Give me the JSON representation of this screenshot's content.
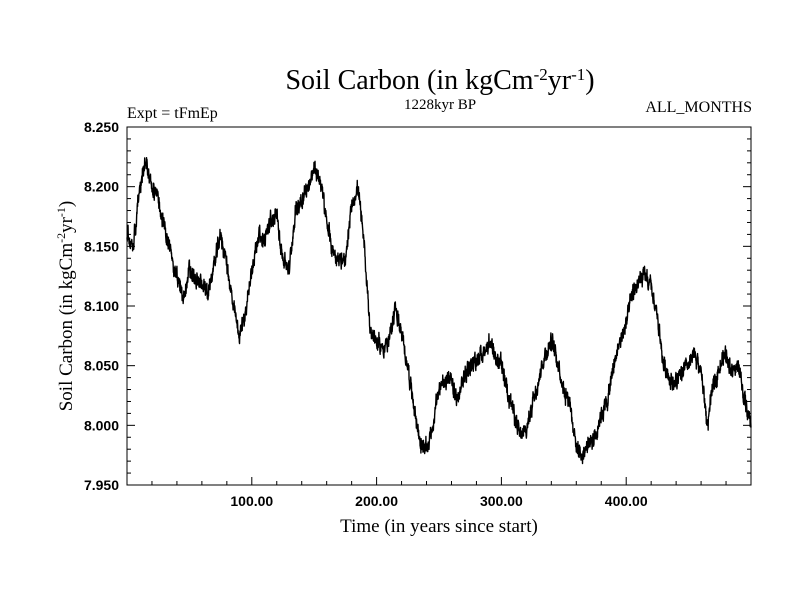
{
  "chart_data": {
    "type": "line",
    "title": {
      "main": "Soil Carbon (in kgCm",
      "exp1": "-2",
      "mid": "yr",
      "exp2": "-1",
      "close": ")"
    },
    "subtitle": "1228kyr BP",
    "experiment": "Expt = tFmEp",
    "months": "ALL_MONTHS",
    "xlabel": "Time (in years since start)",
    "ylabel": {
      "main": "Soil Carbon (in kgCm",
      "exp1": "-2",
      "mid": "yr",
      "exp2": "-1",
      "close": ")"
    },
    "xlim": [
      0,
      500
    ],
    "ylim": [
      7.95,
      8.25
    ],
    "xticks": [
      {
        "value": 100,
        "label": "100.00"
      },
      {
        "value": 200,
        "label": "200.00"
      },
      {
        "value": 300,
        "label": "300.00"
      },
      {
        "value": 400,
        "label": "400.00"
      }
    ],
    "yticks": [
      {
        "value": 7.95,
        "label": "7.950"
      },
      {
        "value": 8.0,
        "label": "8.000"
      },
      {
        "value": 8.05,
        "label": "8.050"
      },
      {
        "value": 8.1,
        "label": "8.100"
      },
      {
        "value": 8.15,
        "label": "8.150"
      },
      {
        "value": 8.2,
        "label": "8.200"
      },
      {
        "value": 8.25,
        "label": "8.250"
      }
    ],
    "series": [
      {
        "name": "Soil Carbon",
        "color": "#000000",
        "noise": 0.009,
        "x": [
          0,
          5,
          10,
          15,
          20,
          25,
          30,
          35,
          40,
          45,
          50,
          55,
          60,
          65,
          70,
          75,
          80,
          85,
          90,
          95,
          100,
          105,
          110,
          115,
          120,
          125,
          130,
          135,
          140,
          145,
          150,
          155,
          160,
          165,
          170,
          175,
          180,
          185,
          190,
          195,
          200,
          205,
          210,
          215,
          220,
          225,
          230,
          235,
          240,
          245,
          250,
          255,
          260,
          265,
          270,
          275,
          280,
          285,
          290,
          295,
          300,
          305,
          310,
          315,
          320,
          325,
          330,
          335,
          340,
          345,
          350,
          355,
          360,
          365,
          370,
          375,
          380,
          385,
          390,
          395,
          400,
          405,
          410,
          415,
          420,
          425,
          430,
          435,
          440,
          445,
          450,
          455,
          460,
          465,
          470,
          475,
          480,
          485,
          490,
          495,
          500
        ],
        "y": [
          8.16,
          8.15,
          8.2,
          8.22,
          8.2,
          8.19,
          8.165,
          8.145,
          8.125,
          8.105,
          8.13,
          8.12,
          8.12,
          8.11,
          8.135,
          8.16,
          8.135,
          8.1,
          8.075,
          8.095,
          8.13,
          8.16,
          8.155,
          8.17,
          8.175,
          8.14,
          8.13,
          8.18,
          8.19,
          8.2,
          8.215,
          8.205,
          8.17,
          8.145,
          8.14,
          8.135,
          8.185,
          8.2,
          8.15,
          8.08,
          8.07,
          8.065,
          8.07,
          8.1,
          8.075,
          8.05,
          8.015,
          7.985,
          7.98,
          8.0,
          8.03,
          8.04,
          8.035,
          8.02,
          8.04,
          8.05,
          8.055,
          8.06,
          8.07,
          8.055,
          8.05,
          8.03,
          8.01,
          7.99,
          7.995,
          8.02,
          8.04,
          8.06,
          8.07,
          8.055,
          8.03,
          8.02,
          7.98,
          7.975,
          7.985,
          7.99,
          8.01,
          8.02,
          8.05,
          8.07,
          8.085,
          8.11,
          8.12,
          8.125,
          8.115,
          8.09,
          8.05,
          8.04,
          8.035,
          8.045,
          8.05,
          8.06,
          8.045,
          8.0,
          8.035,
          8.05,
          8.06,
          8.045,
          8.05,
          8.02,
          8.0
        ]
      }
    ]
  }
}
